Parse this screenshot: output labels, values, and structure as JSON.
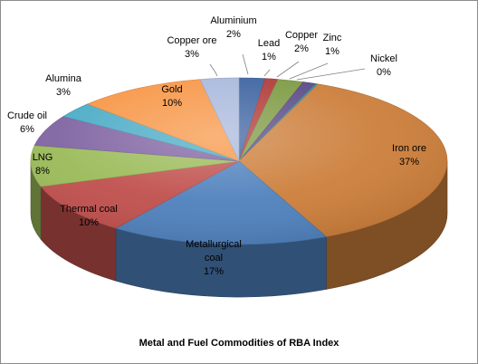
{
  "chart_data": {
    "type": "pie",
    "title": "Metal and Fuel Commodities  of RBA Index",
    "slices": [
      {
        "label": "Aluminium",
        "value": 2,
        "display": "2%",
        "color": "#3c62a0"
      },
      {
        "label": "Lead",
        "value": 1,
        "display": "1%",
        "color": "#b03a38"
      },
      {
        "label": "Copper",
        "value": 2,
        "display": "2%",
        "color": "#7d9a43"
      },
      {
        "label": "Zinc",
        "value": 1,
        "display": "1%",
        "color": "#5b4a86"
      },
      {
        "label": "Nickel",
        "value": 0,
        "display": "0%",
        "color": "#2e8da6"
      },
      {
        "label": "Iron ore",
        "value": 37,
        "display": "37%",
        "color": "#cc7e3a"
      },
      {
        "label": "Metallurgical coal",
        "value": 17,
        "display": "17%",
        "color": "#4f81bd"
      },
      {
        "label": "Thermal coal",
        "value": 10,
        "display": "10%",
        "color": "#c0504d"
      },
      {
        "label": "LNG",
        "value": 8,
        "display": "8%",
        "color": "#9bbb59"
      },
      {
        "label": "Crude oil",
        "value": 6,
        "display": "6%",
        "color": "#8064a2"
      },
      {
        "label": "Alumina",
        "value": 3,
        "display": "3%",
        "color": "#4bacc6"
      },
      {
        "label": "Gold",
        "value": 10,
        "display": "10%",
        "color": "#f79646"
      },
      {
        "label": "Copper ore",
        "value": 3,
        "display": "3%",
        "color": "#a9b8dc"
      }
    ]
  }
}
